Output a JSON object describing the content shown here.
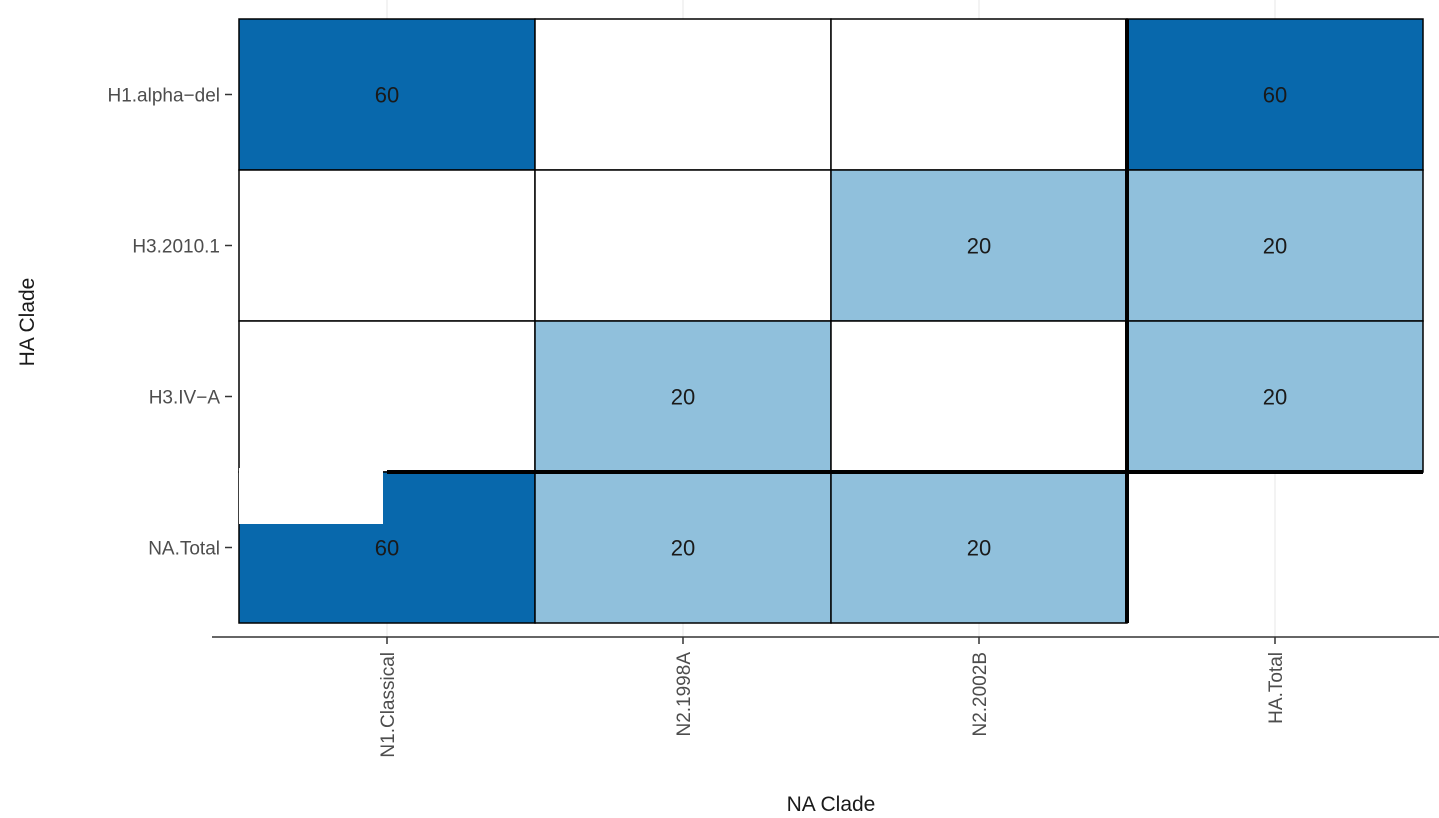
{
  "chart_data": {
    "type": "heatmap",
    "title": "",
    "xlabel": "NA Clade",
    "ylabel": "HA Clade",
    "x_categories": [
      "N1.Classical",
      "N2.1998A",
      "N2.2002B",
      "HA.Total"
    ],
    "y_categories": [
      "H1.alpha−del",
      "H3.2010.1",
      "H3.IV−A",
      "NA.Total"
    ],
    "cells": [
      {
        "x": "N1.Classical",
        "y": "H1.alpha−del",
        "value": 60,
        "label": "60"
      },
      {
        "x": "N2.1998A",
        "y": "H1.alpha−del",
        "value": null,
        "label": ""
      },
      {
        "x": "N2.2002B",
        "y": "H1.alpha−del",
        "value": null,
        "label": ""
      },
      {
        "x": "HA.Total",
        "y": "H1.alpha−del",
        "value": 60,
        "label": "60"
      },
      {
        "x": "N1.Classical",
        "y": "H3.2010.1",
        "value": null,
        "label": ""
      },
      {
        "x": "N2.1998A",
        "y": "H3.2010.1",
        "value": null,
        "label": ""
      },
      {
        "x": "N2.2002B",
        "y": "H3.2010.1",
        "value": 20,
        "label": "20"
      },
      {
        "x": "HA.Total",
        "y": "H3.2010.1",
        "value": 20,
        "label": "20"
      },
      {
        "x": "N1.Classical",
        "y": "H3.IV−A",
        "value": null,
        "label": ""
      },
      {
        "x": "N2.1998A",
        "y": "H3.IV−A",
        "value": 20,
        "label": "20"
      },
      {
        "x": "N2.2002B",
        "y": "H3.IV−A",
        "value": null,
        "label": ""
      },
      {
        "x": "HA.Total",
        "y": "H3.IV−A",
        "value": 20,
        "label": "20"
      },
      {
        "x": "N1.Classical",
        "y": "NA.Total",
        "value": 60,
        "label": "60"
      },
      {
        "x": "N2.1998A",
        "y": "NA.Total",
        "value": 20,
        "label": "20"
      },
      {
        "x": "N2.2002B",
        "y": "NA.Total",
        "value": 20,
        "label": "20"
      }
    ],
    "colors": {
      "high": "#0868ac",
      "low": "#90c0dc",
      "empty": "#ffffff",
      "cell_border": "#000000",
      "gridline": "#ebebeb"
    },
    "grid": true,
    "legend": "none"
  }
}
